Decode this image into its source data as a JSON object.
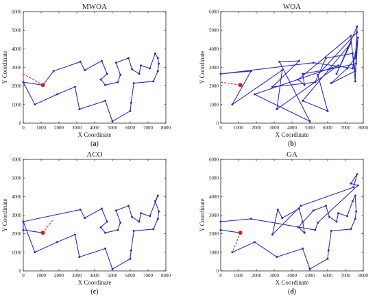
{
  "colors": {
    "route": "#2a2acd",
    "closing": "#e01d1d",
    "start_marker": "#e01d1d"
  },
  "chart_data": [
    {
      "type": "line",
      "title": "MWOA",
      "caption_letter": "a",
      "xlabel": "X Coordinate",
      "ylabel": "Y Coordinate",
      "xlim": [
        0,
        8000
      ],
      "ylim": [
        0,
        6000
      ],
      "xticks": [
        0,
        1000,
        2000,
        3000,
        4000,
        5000,
        6000,
        7000,
        8000
      ],
      "yticks": [
        0,
        1000,
        2000,
        3000,
        4000,
        5000,
        6000
      ],
      "start": [
        1100,
        2050
      ],
      "route": [
        [
          1100,
          2050
        ],
        [
          0,
          2200
        ],
        [
          650,
          1000
        ],
        [
          1900,
          1550
        ],
        [
          2900,
          1950
        ],
        [
          3150,
          750
        ],
        [
          4600,
          1200
        ],
        [
          5000,
          100
        ],
        [
          6000,
          650
        ],
        [
          6050,
          1100
        ],
        [
          6200,
          2150
        ],
        [
          7300,
          2250
        ],
        [
          7550,
          2800
        ],
        [
          7600,
          3200
        ],
        [
          7550,
          3500
        ],
        [
          7400,
          3750
        ],
        [
          7100,
          2950
        ],
        [
          6600,
          3100
        ],
        [
          6500,
          2650
        ],
        [
          6100,
          2900
        ],
        [
          5900,
          3500
        ],
        [
          5200,
          3250
        ],
        [
          5450,
          2600
        ],
        [
          5300,
          2200
        ],
        [
          4600,
          2050
        ],
        [
          4350,
          2350
        ],
        [
          4700,
          2650
        ],
        [
          4400,
          3350
        ],
        [
          3450,
          2850
        ],
        [
          3200,
          3300
        ],
        [
          1700,
          2800
        ],
        [
          1100,
          2050
        ]
      ],
      "closing": [
        [
          1100,
          2050
        ],
        [
          0,
          2650
        ],
        [
          0,
          2200
        ]
      ]
    },
    {
      "type": "line",
      "title": "WOA",
      "caption_letter": "b",
      "xlabel": "X Coordinate",
      "ylabel": "Y Coordinate",
      "xlim": [
        0,
        8000
      ],
      "ylim": [
        0,
        6000
      ],
      "xticks": [
        0,
        1000,
        2000,
        3000,
        4000,
        5000,
        6000,
        7000,
        8000
      ],
      "yticks": [
        0,
        1000,
        2000,
        3000,
        4000,
        5000,
        6000
      ],
      "start": [
        1100,
        2050
      ],
      "route": [
        [
          0,
          2650
        ],
        [
          1700,
          2800
        ],
        [
          650,
          1000
        ],
        [
          3450,
          2850
        ],
        [
          3150,
          750
        ],
        [
          6600,
          3100
        ],
        [
          1900,
          1550
        ],
        [
          5000,
          100
        ],
        [
          3300,
          3300
        ],
        [
          4400,
          3350
        ],
        [
          2900,
          1950
        ],
        [
          5300,
          2200
        ],
        [
          5900,
          3500
        ],
        [
          7400,
          3750
        ],
        [
          7550,
          2800
        ],
        [
          6200,
          2150
        ],
        [
          7100,
          2950
        ],
        [
          7550,
          3500
        ],
        [
          7650,
          4900
        ],
        [
          5450,
          2600
        ],
        [
          6000,
          650
        ],
        [
          4600,
          1200
        ],
        [
          7300,
          4300
        ],
        [
          6500,
          2650
        ],
        [
          7650,
          5200
        ],
        [
          7550,
          2250
        ],
        [
          7300,
          4700
        ],
        [
          4350,
          2350
        ],
        [
          4700,
          2050
        ],
        [
          4600,
          2650
        ],
        [
          6100,
          2900
        ],
        [
          7600,
          3200
        ],
        [
          7700,
          4600
        ],
        [
          7400,
          2950
        ],
        [
          5200,
          3250
        ],
        [
          0,
          2650
        ]
      ],
      "closing": [
        [
          0,
          2200
        ],
        [
          1100,
          2050
        ]
      ]
    },
    {
      "type": "line",
      "title": "ACO",
      "caption_letter": "c",
      "xlabel": "X Coordinate",
      "ylabel": "Y Coordinate",
      "xlim": [
        0,
        8000
      ],
      "ylim": [
        0,
        6000
      ],
      "xticks": [
        0,
        1000,
        2000,
        3000,
        4000,
        5000,
        6000,
        7000,
        8000
      ],
      "yticks": [
        0,
        1000,
        2000,
        3000,
        4000,
        5000,
        6000
      ],
      "start": [
        1100,
        2050
      ],
      "route": [
        [
          1100,
          2050
        ],
        [
          0,
          2200
        ],
        [
          0,
          2650
        ],
        [
          650,
          1000
        ],
        [
          1900,
          1550
        ],
        [
          2900,
          1950
        ],
        [
          3150,
          750
        ],
        [
          4600,
          1200
        ],
        [
          5000,
          100
        ],
        [
          6000,
          650
        ],
        [
          6050,
          1100
        ],
        [
          6200,
          2150
        ],
        [
          7300,
          2250
        ],
        [
          7550,
          2800
        ],
        [
          7600,
          3200
        ],
        [
          7400,
          3750
        ],
        [
          7550,
          4050
        ],
        [
          7100,
          2950
        ],
        [
          6600,
          3100
        ],
        [
          6500,
          2650
        ],
        [
          6100,
          2900
        ],
        [
          5900,
          3500
        ],
        [
          5200,
          3250
        ],
        [
          5450,
          2600
        ],
        [
          5300,
          2200
        ],
        [
          4600,
          2050
        ],
        [
          4350,
          2350
        ],
        [
          4700,
          2650
        ],
        [
          4400,
          3350
        ],
        [
          3450,
          2850
        ],
        [
          3200,
          3300
        ],
        [
          0,
          2650
        ]
      ],
      "closing": [
        [
          1100,
          2050
        ],
        [
          1700,
          2800
        ]
      ]
    },
    {
      "type": "line",
      "title": "GA",
      "caption_letter": "d",
      "xlabel": "X Coordinate",
      "ylabel": "Y Coordinate",
      "xlim": [
        0,
        8000
      ],
      "ylim": [
        0,
        6000
      ],
      "xticks": [
        0,
        1000,
        2000,
        3000,
        4000,
        5000,
        6000,
        7000,
        8000
      ],
      "yticks": [
        0,
        1000,
        2000,
        3000,
        4000,
        5000,
        6000
      ],
      "start": [
        1100,
        2050
      ],
      "route": [
        [
          650,
          1000
        ],
        [
          1900,
          1550
        ],
        [
          3150,
          750
        ],
        [
          4600,
          1200
        ],
        [
          5000,
          100
        ],
        [
          6000,
          650
        ],
        [
          6050,
          1100
        ],
        [
          6200,
          2150
        ],
        [
          7300,
          2250
        ],
        [
          7550,
          2800
        ],
        [
          7600,
          3200
        ],
        [
          7550,
          4050
        ],
        [
          7400,
          3750
        ],
        [
          7100,
          2950
        ],
        [
          6600,
          3100
        ],
        [
          6500,
          2650
        ],
        [
          6100,
          2900
        ],
        [
          5900,
          3500
        ],
        [
          5200,
          3250
        ],
        [
          4350,
          2350
        ],
        [
          4700,
          2050
        ],
        [
          4600,
          2650
        ],
        [
          4400,
          3350
        ],
        [
          3450,
          2850
        ],
        [
          3200,
          3300
        ],
        [
          2900,
          1950
        ],
        [
          4500,
          3500
        ],
        [
          7450,
          4500
        ],
        [
          7650,
          5200
        ],
        [
          7300,
          4700
        ],
        [
          7700,
          4600
        ],
        [
          5450,
          2600
        ],
        [
          5300,
          2200
        ],
        [
          1700,
          2800
        ],
        [
          0,
          2650
        ],
        [
          0,
          2200
        ],
        [
          1100,
          2050
        ]
      ],
      "closing": [
        [
          1100,
          2050
        ],
        [
          650,
          1000
        ]
      ]
    }
  ]
}
